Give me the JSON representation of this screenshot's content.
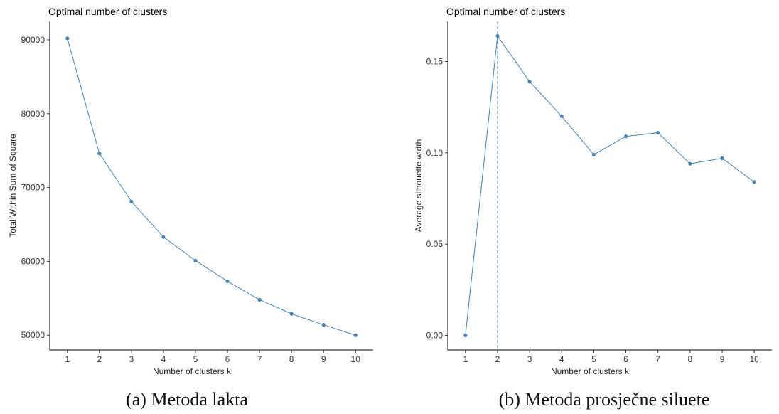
{
  "colors": {
    "series": "#4682b4",
    "axis": "#000000",
    "vline": "#4682b4"
  },
  "captions": [
    "(a) Metoda lakta",
    "(b) Metoda prosječne siluete"
  ],
  "chart_data": [
    {
      "type": "line",
      "title": "Optimal number of clusters",
      "xlabel": "Number of clusters k",
      "ylabel": "Total Within Sum of Square",
      "x": [
        1,
        2,
        3,
        4,
        5,
        6,
        7,
        8,
        9,
        10
      ],
      "values": [
        90200,
        74600,
        68100,
        63300,
        60100,
        57300,
        54800,
        52900,
        51400,
        50000
      ],
      "xticks": [
        "1",
        "2",
        "3",
        "4",
        "5",
        "6",
        "7",
        "8",
        "9",
        "10"
      ],
      "yticks": [
        50000,
        60000,
        70000,
        80000,
        90000
      ],
      "ylim": [
        48000,
        92500
      ],
      "grid": false
    },
    {
      "type": "line",
      "title": "Optimal number of clusters",
      "xlabel": "Number of clusters k",
      "ylabel": "Average silhouette width",
      "x": [
        1,
        2,
        3,
        4,
        5,
        6,
        7,
        8,
        9,
        10
      ],
      "values": [
        0.0,
        0.164,
        0.139,
        0.12,
        0.099,
        0.109,
        0.111,
        0.094,
        0.097,
        0.084
      ],
      "xticks": [
        "1",
        "2",
        "3",
        "4",
        "5",
        "6",
        "7",
        "8",
        "9",
        "10"
      ],
      "yticks": [
        0.0,
        0.05,
        0.1,
        0.15
      ],
      "ytick_labels": [
        "0.00",
        "0.05",
        "0.10",
        "0.15"
      ],
      "ylim": [
        -0.008,
        0.172
      ],
      "vline_x": 2,
      "grid": false
    }
  ]
}
